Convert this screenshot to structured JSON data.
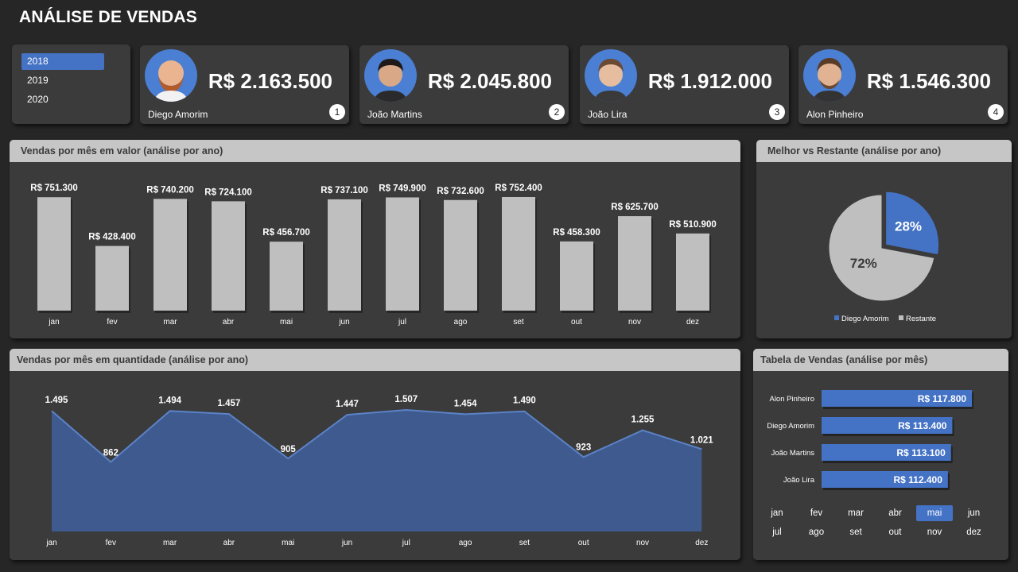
{
  "title": "ANÁLISE DE VENDAS",
  "colors": {
    "accent": "#4472c4",
    "bar": "#bfbfbf",
    "area": "#3f5a8e",
    "panel": "#3b3b3b",
    "header": "#c6c6c6"
  },
  "years": {
    "items": [
      "2018",
      "2019",
      "2020"
    ],
    "selected": "2018"
  },
  "cards": [
    {
      "name": "Diego Amorim",
      "amount": "R$ 2.163.500",
      "rank": "1"
    },
    {
      "name": "João Martins",
      "amount": "R$ 2.045.800",
      "rank": "2"
    },
    {
      "name": "João Lira",
      "amount": "R$ 1.912.000",
      "rank": "3"
    },
    {
      "name": "Alon Pinheiro",
      "amount": "R$ 1.546.300",
      "rank": "4"
    }
  ],
  "bar_panel": {
    "title": "Vendas por mês em valor (análise por ano)"
  },
  "pie_panel": {
    "title": "Melhor vs Restante (análise por ano)"
  },
  "area_panel": {
    "title": "Vendas por mês em quantidade (análise por ano)"
  },
  "table_panel": {
    "title": "Tabela de Vendas (análise por mês)",
    "months": [
      "jan",
      "fev",
      "mar",
      "abr",
      "mai",
      "jun",
      "jul",
      "ago",
      "set",
      "out",
      "nov",
      "dez"
    ],
    "selected_month": "mai"
  },
  "chart_data": [
    {
      "type": "bar",
      "title": "Vendas por mês em valor (análise por ano)",
      "categories": [
        "jan",
        "fev",
        "mar",
        "abr",
        "mai",
        "jun",
        "jul",
        "ago",
        "set",
        "out",
        "nov",
        "dez"
      ],
      "values": [
        751300,
        428400,
        740200,
        724100,
        456700,
        737100,
        749900,
        732600,
        752400,
        458300,
        625700,
        510900
      ],
      "labels": [
        "R$ 751.300",
        "R$ 428.400",
        "R$ 740.200",
        "R$ 724.100",
        "R$ 456.700",
        "R$ 737.100",
        "R$ 749.900",
        "R$ 732.600",
        "R$ 752.400",
        "R$ 458.300",
        "R$ 625.700",
        "R$ 510.900"
      ],
      "ylim": [
        0,
        800000
      ]
    },
    {
      "type": "pie",
      "title": "Melhor vs Restante (análise por ano)",
      "categories": [
        "Diego Amorim",
        "Restante"
      ],
      "values": [
        28,
        72
      ],
      "labels": [
        "28%",
        "72%"
      ],
      "legend": "bottom"
    },
    {
      "type": "area",
      "title": "Vendas por mês em quantidade (análise por ano)",
      "categories": [
        "jan",
        "fev",
        "mar",
        "abr",
        "mai",
        "jun",
        "jul",
        "ago",
        "set",
        "out",
        "nov",
        "dez"
      ],
      "values": [
        1495,
        862,
        1494,
        1457,
        905,
        1447,
        1507,
        1454,
        1490,
        923,
        1255,
        1021
      ],
      "labels": [
        "1.495",
        "862",
        "1.494",
        "1.457",
        "905",
        "1.447",
        "1.507",
        "1.454",
        "1.490",
        "923",
        "1.255",
        "1.021"
      ],
      "ylim": [
        0,
        1650
      ]
    },
    {
      "type": "bar",
      "orientation": "horizontal",
      "title": "Tabela de Vendas (análise por mês)",
      "categories": [
        "Alon Pinheiro",
        "Diego Amorim",
        "João Martins",
        "João Lira"
      ],
      "values": [
        117800,
        113400,
        113100,
        112400
      ],
      "labels": [
        "R$ 117.800",
        "R$ 113.400",
        "R$ 113.100",
        "R$ 112.400"
      ],
      "xlim": [
        84000,
        118500
      ]
    }
  ]
}
